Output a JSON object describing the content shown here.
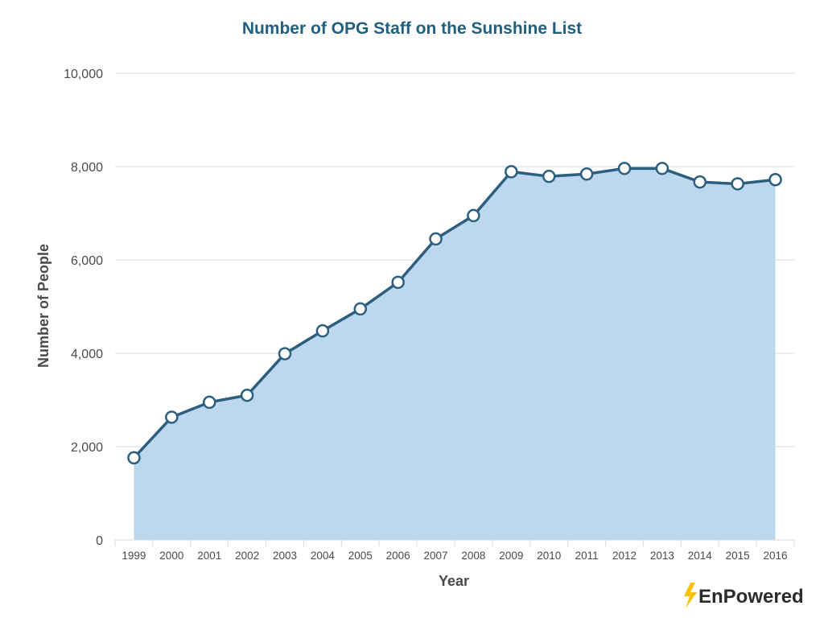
{
  "chart_data": {
    "type": "area",
    "title": "Number of OPG Staff on the Sunshine List",
    "xlabel": "Year",
    "ylabel": "Number of People",
    "x": [
      "1999",
      "2000",
      "2001",
      "2002",
      "2003",
      "2004",
      "2005",
      "2006",
      "2007",
      "2008",
      "2009",
      "2010",
      "2011",
      "2012",
      "2013",
      "2014",
      "2015",
      "2016"
    ],
    "y": [
      1760,
      2630,
      2950,
      3100,
      3990,
      4480,
      4950,
      5520,
      6450,
      6950,
      7890,
      7790,
      7840,
      7960,
      7960,
      7670,
      7630,
      7720
    ],
    "ylim": [
      0,
      10000
    ],
    "yticks": [
      0,
      2000,
      4000,
      6000,
      8000,
      10000
    ],
    "ytick_labels": [
      "0",
      "2,000",
      "4,000",
      "6,000",
      "8,000",
      "10,000"
    ],
    "grid": "horizontal",
    "legend": "none",
    "colors": {
      "area": "#bdd7ee",
      "line": "#2c5f7f",
      "marker_fill": "#ffffff",
      "title": "#1f5f7f",
      "grid": "#d9d9d9",
      "axis_text": "#4a4a4a"
    }
  },
  "branding": {
    "logo_text": "EnPowered",
    "logo_icon": "lightning-bolt-icon",
    "logo_icon_color": "#f4c20d"
  }
}
